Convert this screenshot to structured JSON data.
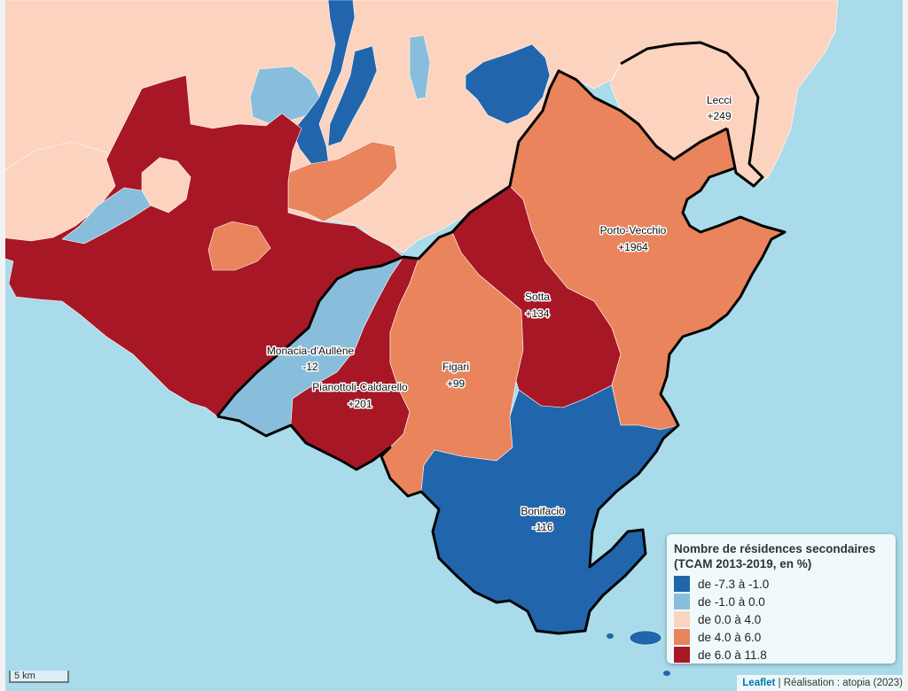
{
  "map": {
    "colors": {
      "sea": "#a9dbea",
      "class_1": "#2166ac",
      "class_2": "#88bedc",
      "class_3": "#fcd3bf",
      "class_4": "#e9845c",
      "class_5": "#a81725"
    },
    "communes": [
      {
        "name": "Lecci",
        "value": "+249"
      },
      {
        "name": "Porto-Vecchio",
        "value": "+1964"
      },
      {
        "name": "Sotta",
        "value": "+134"
      },
      {
        "name": "Figari",
        "value": "+99"
      },
      {
        "name": "Monacia-d'Aullène",
        "value": "-12"
      },
      {
        "name": "Pianottoli-Caldarello",
        "value": "+201"
      },
      {
        "name": "Bonifacio",
        "value": "-116"
      }
    ]
  },
  "legend": {
    "title_line1": "Nombre de résidences secondaires",
    "title_line2": "(TCAM 2013-2019, en %)",
    "items": [
      {
        "label": "de -7.3 à -1.0",
        "color": "#2166ac"
      },
      {
        "label": "de -1.0 à 0.0",
        "color": "#88bedc"
      },
      {
        "label": "de 0.0 à 4.0",
        "color": "#fcd3bf"
      },
      {
        "label": "de 4.0 à 6.0",
        "color": "#e9845c"
      },
      {
        "label": "de 6.0 à 11.8",
        "color": "#a81725"
      }
    ]
  },
  "scale": {
    "label": "5 km"
  },
  "attribution": {
    "link": "Leaflet",
    "separator": " | ",
    "credit": "Réalisation : atopia (2023)"
  }
}
